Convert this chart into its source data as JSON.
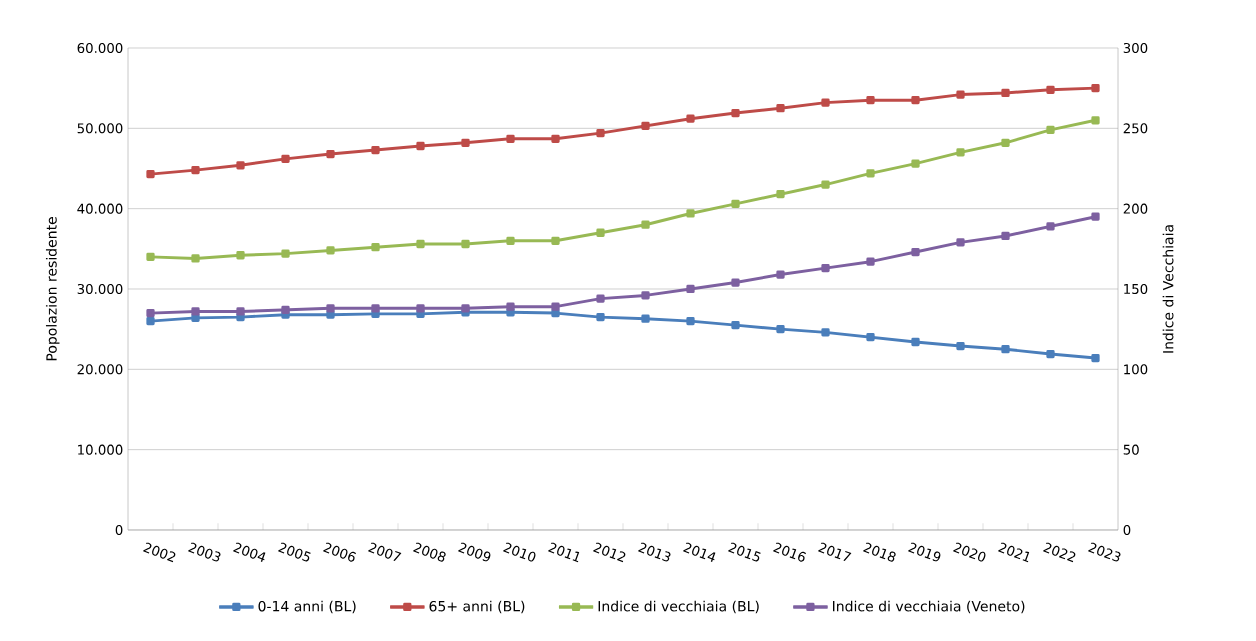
{
  "chart_data": {
    "type": "line",
    "ylabel": "Popolazion residente",
    "y2label": "Indice di Vecchiaia",
    "categories": [
      "2002",
      "2003",
      "2004",
      "2005",
      "2006",
      "2007",
      "2008",
      "2009",
      "2010",
      "2011",
      "2012",
      "2013",
      "2014",
      "2015",
      "2016",
      "2017",
      "2018",
      "2019",
      "2020",
      "2021",
      "2022",
      "2023"
    ],
    "series": [
      {
        "name": "0-14 anni (BL)",
        "color": "#4a7ebb",
        "axis": "y",
        "values": [
          26000,
          26400,
          26500,
          26800,
          26800,
          26900,
          26900,
          27100,
          27100,
          27000,
          26500,
          26300,
          26000,
          25500,
          25000,
          24600,
          24000,
          23400,
          22900,
          22500,
          21900,
          21400
        ]
      },
      {
        "name": "65+ anni (BL)",
        "color": "#be4b48",
        "axis": "y",
        "values": [
          44300,
          44800,
          45400,
          46200,
          46800,
          47300,
          47800,
          48200,
          48700,
          48700,
          49400,
          50300,
          51200,
          51900,
          52500,
          53200,
          53500,
          53500,
          54200,
          54400,
          54800,
          55000
        ]
      },
      {
        "name": "Indice di vecchiaia (BL)",
        "color": "#98b954",
        "axis": "y2",
        "values": [
          170,
          169,
          171,
          172,
          174,
          176,
          178,
          178,
          180,
          180,
          185,
          190,
          197,
          203,
          209,
          215,
          222,
          228,
          235,
          241,
          249,
          255
        ]
      },
      {
        "name": "Indice di vecchiaia (Veneto)",
        "color": "#7d60a0",
        "axis": "y2",
        "values": [
          135,
          136,
          136,
          137,
          138,
          138,
          138,
          138,
          139,
          139,
          144,
          146,
          150,
          154,
          159,
          163,
          167,
          173,
          179,
          183,
          189,
          195
        ]
      }
    ],
    "ylim": [
      0,
      60000
    ],
    "yticks": [
      {
        "value": 0,
        "label": "0"
      },
      {
        "value": 10000,
        "label": "10.000"
      },
      {
        "value": 20000,
        "label": "20.000"
      },
      {
        "value": 30000,
        "label": "30.000"
      },
      {
        "value": 40000,
        "label": "40.000"
      },
      {
        "value": 50000,
        "label": "50.000"
      },
      {
        "value": 60000,
        "label": "60.000"
      }
    ],
    "y2lim": [
      0,
      300
    ],
    "y2ticks": [
      0,
      50,
      100,
      150,
      200,
      250,
      300
    ],
    "grid": "y",
    "legend": "bottom",
    "marker": "square",
    "line_style": "solid"
  }
}
